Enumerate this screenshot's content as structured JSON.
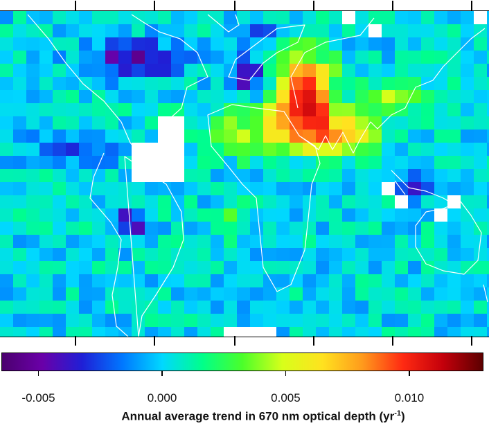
{
  "map": {
    "description_none": "",
    "colorbar_stops": [
      "#4b006e",
      "#6a00a8",
      "#1f1fd6",
      "#0077ff",
      "#00d8ff",
      "#00ff8a",
      "#4bff2a",
      "#d8ff1a",
      "#ffe21f",
      "#ff9a1c",
      "#ff2a12",
      "#c4000b",
      "#5c0000"
    ],
    "color_range": [
      -0.0065,
      0.013
    ],
    "missing_color": "#ffffff",
    "coastline_color": "#ffffff"
  },
  "colorbar": {
    "ticks": [
      {
        "value": -0.005,
        "label": "-0.005"
      },
      {
        "value": 0.0,
        "label": "0.000"
      },
      {
        "value": 0.005,
        "label": "0.005"
      },
      {
        "value": 0.01,
        "label": "0.010"
      }
    ]
  },
  "caption": {
    "text": "Annual average trend in 670 nm optical depth (yr",
    "sup": "-1",
    "close": ")"
  }
}
